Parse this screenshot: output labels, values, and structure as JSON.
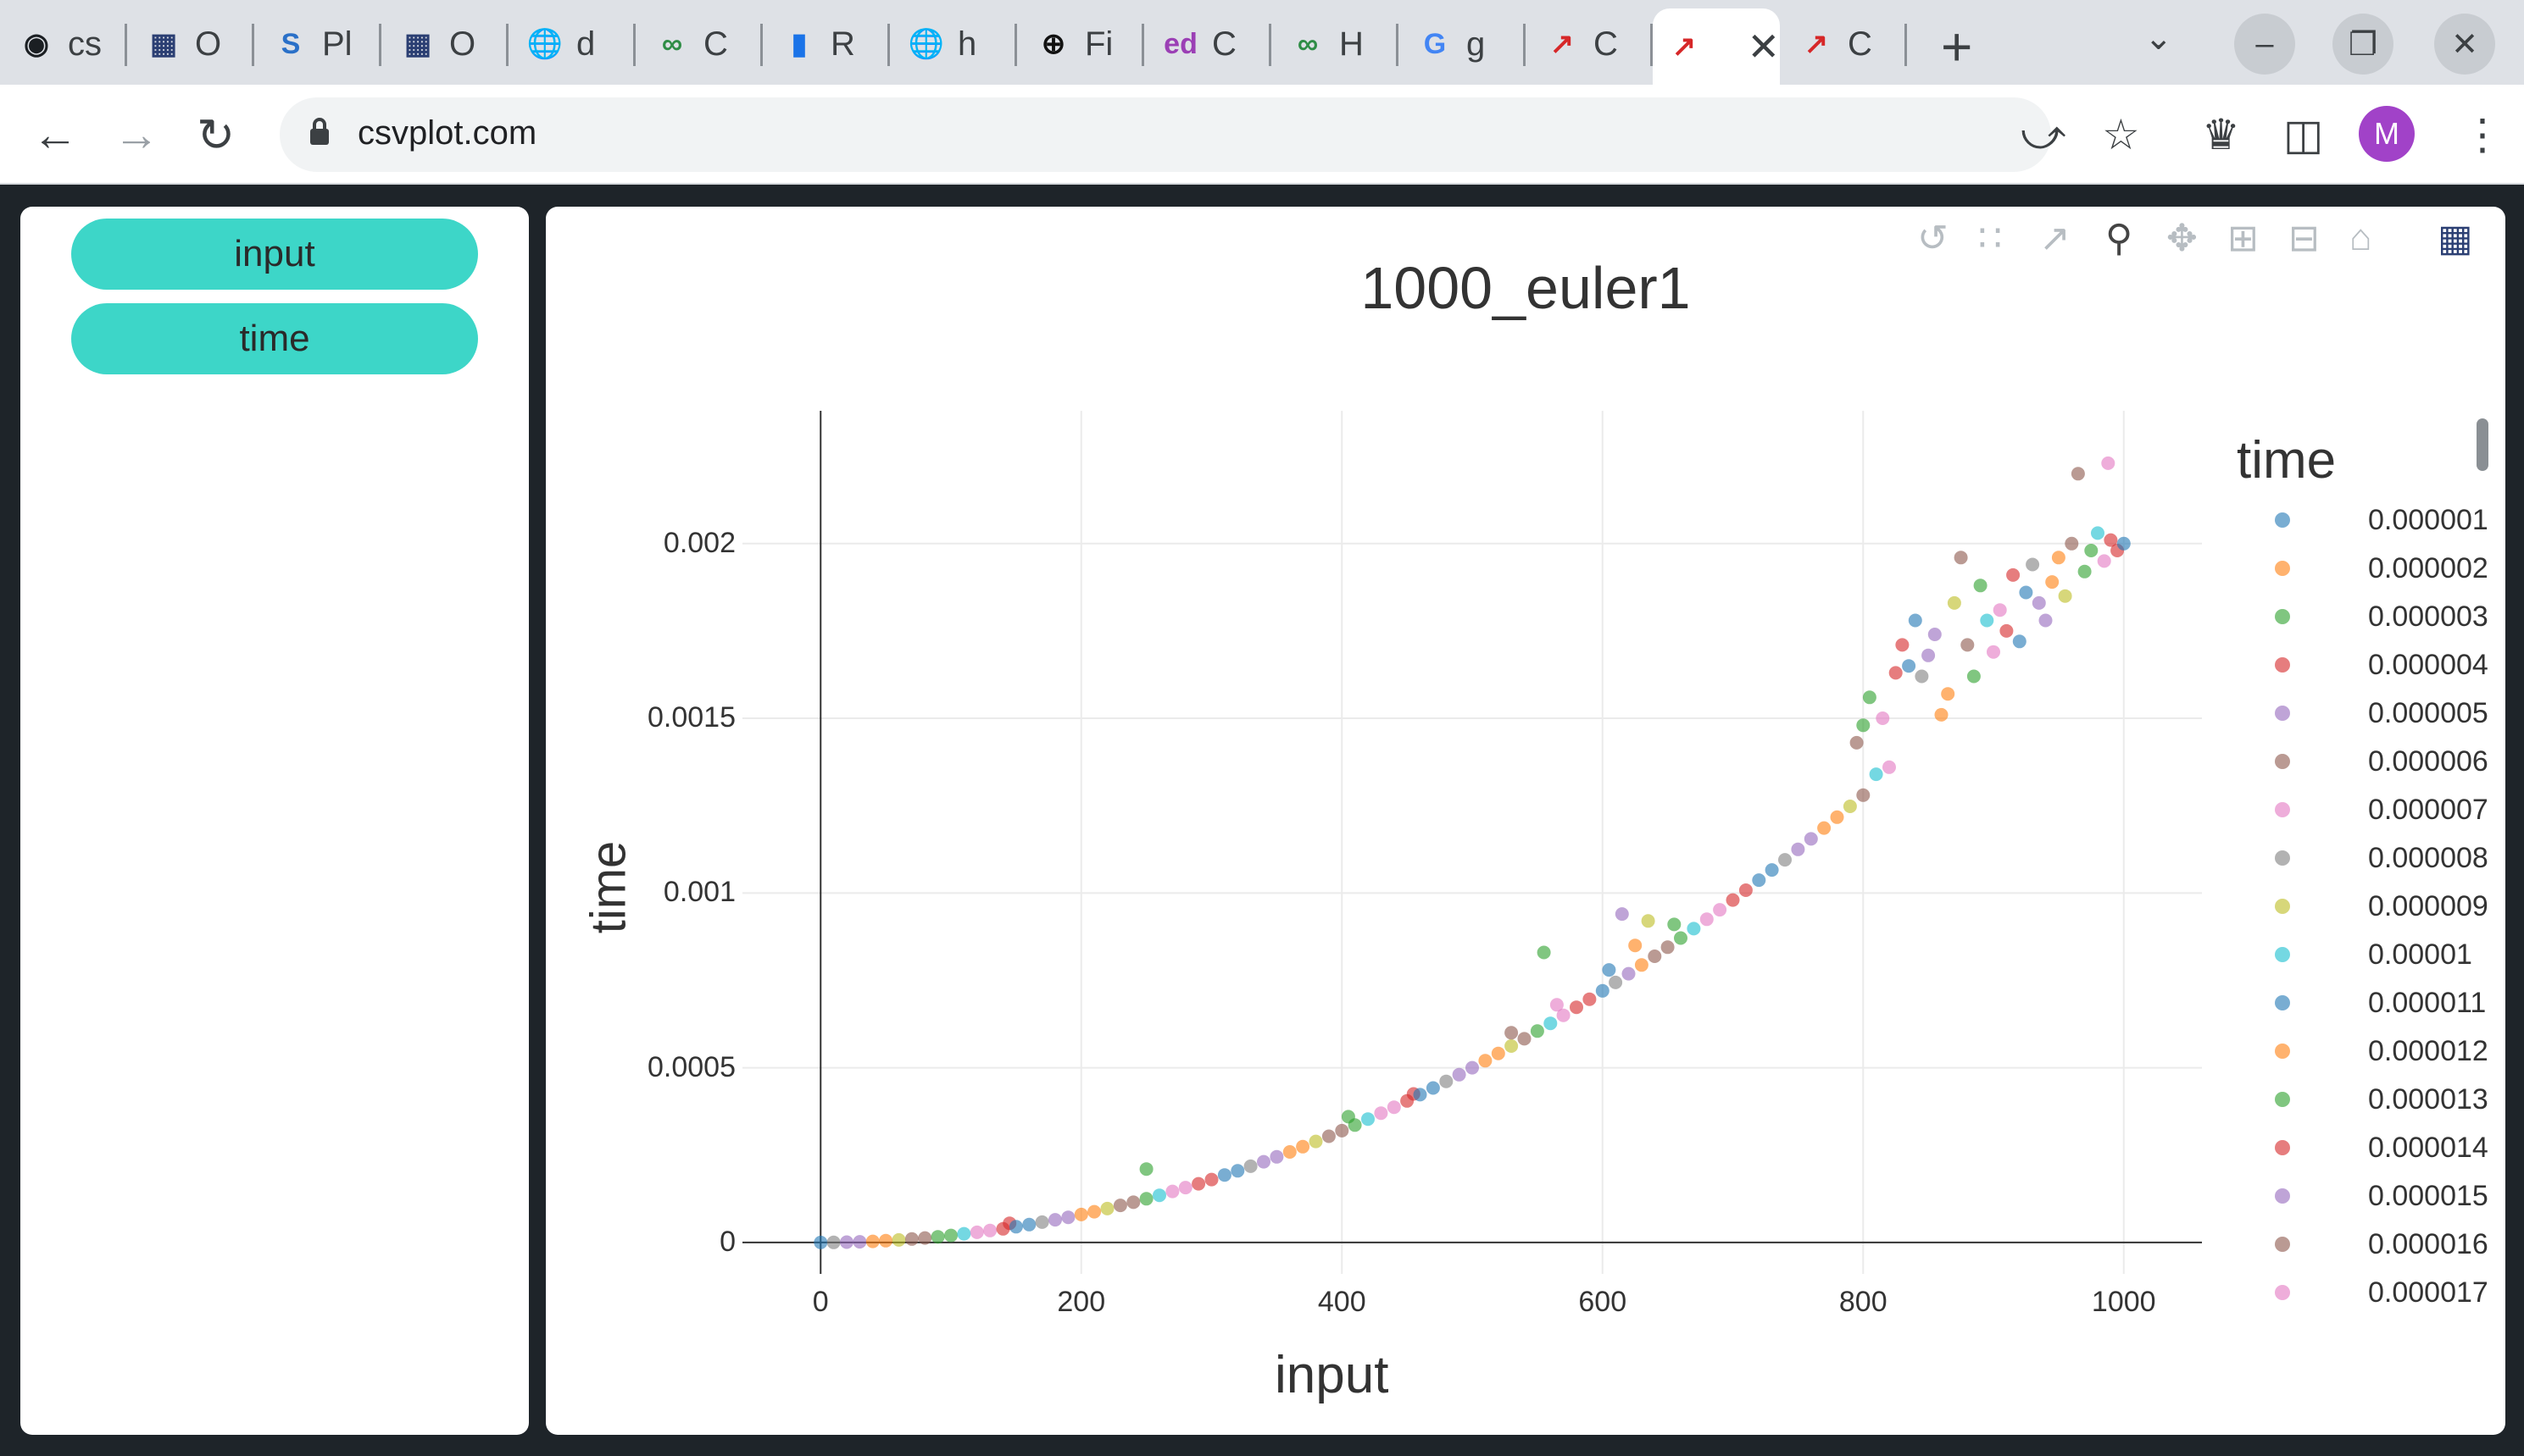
{
  "browser": {
    "tabs": [
      {
        "title": "cs",
        "icon": "github-icon",
        "color": "#1b1f23"
      },
      {
        "title": "O",
        "icon": "plotly-icon",
        "color": "#2b3f73"
      },
      {
        "title": "Pl",
        "icon": "sx-icon",
        "color": "#2a70c8"
      },
      {
        "title": "O",
        "icon": "plotly-icon",
        "color": "#2b3f73"
      },
      {
        "title": "d",
        "icon": "globe-icon",
        "color": "#5f6368"
      },
      {
        "title": "C",
        "icon": "gfg-icon",
        "color": "#2f8d46"
      },
      {
        "title": "R",
        "icon": "bar-chart-icon",
        "color": "#1a73e8"
      },
      {
        "title": "h",
        "icon": "globe-icon",
        "color": "#5f6368"
      },
      {
        "title": "Fi",
        "icon": "cplus-icon",
        "color": "#111"
      },
      {
        "title": "C",
        "icon": "ed-icon",
        "color": "#9b3fb5"
      },
      {
        "title": "H",
        "icon": "gfg-icon",
        "color": "#2f8d46"
      },
      {
        "title": "g",
        "icon": "google-icon",
        "color": "#4285f4"
      },
      {
        "title": "C",
        "icon": "csvplot-icon",
        "color": "#d62728"
      },
      {
        "title": "",
        "icon": "csvplot-icon",
        "color": "#d62728",
        "active": true
      },
      {
        "title": "C",
        "icon": "csvplot-icon",
        "color": "#d62728"
      }
    ],
    "url": "csvplot.com",
    "avatar_letter": "M"
  },
  "sidebar": {
    "buttons": [
      {
        "label": "input"
      },
      {
        "label": "time"
      }
    ]
  },
  "modebar_icons": [
    "reset-icon",
    "select-points-icon",
    "line-icon",
    "zoom-icon",
    "pan-icon",
    "zoom-in-icon",
    "zoom-out-icon",
    "home-icon",
    "plotly-logo-icon"
  ],
  "chart_data": {
    "type": "scatter",
    "title": "1000_euler1",
    "xlabel": "input",
    "ylabel": "time",
    "xlim": [
      -60,
      1060
    ],
    "ylim": [
      -9e-05,
      0.00238
    ],
    "x_ticks": [
      0,
      200,
      400,
      600,
      800,
      1000
    ],
    "x_tick_labels": [
      "0",
      "200",
      "400",
      "600",
      "800",
      "1000"
    ],
    "y_ticks": [
      0,
      0.0005,
      0.001,
      0.0015,
      0.002
    ],
    "y_tick_labels": [
      "0",
      "0.0005",
      "0.001",
      "0.0015",
      "0.002"
    ],
    "grid": true,
    "legend_title": "time",
    "legend_position": "right",
    "series": [
      {
        "name": "0.000001",
        "color": "#1f77b4"
      },
      {
        "name": "0.000002",
        "color": "#ff7f0e"
      },
      {
        "name": "0.000003",
        "color": "#2ca02c"
      },
      {
        "name": "0.000004",
        "color": "#d62728"
      },
      {
        "name": "0.000005",
        "color": "#9467bd"
      },
      {
        "name": "0.000006",
        "color": "#8c564b"
      },
      {
        "name": "0.000007",
        "color": "#e377c2"
      },
      {
        "name": "0.000008",
        "color": "#7f7f7f"
      },
      {
        "name": "0.000009",
        "color": "#bcbd22"
      },
      {
        "name": "0.00001",
        "color": "#17becf"
      },
      {
        "name": "0.000011",
        "color": "#1f77b4"
      },
      {
        "name": "0.000012",
        "color": "#ff7f0e"
      },
      {
        "name": "0.000013",
        "color": "#2ca02c"
      },
      {
        "name": "0.000014",
        "color": "#d62728"
      },
      {
        "name": "0.000015",
        "color": "#9467bd"
      },
      {
        "name": "0.000016",
        "color": "#8c564b"
      },
      {
        "name": "0.000017",
        "color": "#e377c2"
      }
    ],
    "points": [
      [
        0,
        0
      ],
      [
        10,
        2e-07
      ],
      [
        20,
        8e-07
      ],
      [
        30,
        1.8e-06
      ],
      [
        40,
        3.2e-06
      ],
      [
        50,
        5e-06
      ],
      [
        60,
        7.2e-06
      ],
      [
        70,
        9.8e-06
      ],
      [
        80,
        1.28e-05
      ],
      [
        90,
        1.62e-05
      ],
      [
        100,
        2e-05
      ],
      [
        110,
        2.5e-05
      ],
      [
        120,
        2.9e-05
      ],
      [
        130,
        3.4e-05
      ],
      [
        140,
        3.9e-05
      ],
      [
        145,
        5.5e-05
      ],
      [
        150,
        4.5e-05
      ],
      [
        160,
        5.1e-05
      ],
      [
        170,
        5.8e-05
      ],
      [
        180,
        6.5e-05
      ],
      [
        190,
        7.2e-05
      ],
      [
        200,
        8e-05
      ],
      [
        210,
        8.8e-05
      ],
      [
        220,
        9.7e-05
      ],
      [
        230,
        0.000106
      ],
      [
        240,
        0.000115
      ],
      [
        250,
        0.000125
      ],
      [
        250,
        0.00021
      ],
      [
        260,
        0.000135
      ],
      [
        270,
        0.000146
      ],
      [
        280,
        0.000157
      ],
      [
        290,
        0.000168
      ],
      [
        300,
        0.00018
      ],
      [
        310,
        0.000193
      ],
      [
        320,
        0.000205
      ],
      [
        330,
        0.000218
      ],
      [
        340,
        0.000231
      ],
      [
        350,
        0.000245
      ],
      [
        360,
        0.000259
      ],
      [
        370,
        0.000274
      ],
      [
        380,
        0.000289
      ],
      [
        390,
        0.000304
      ],
      [
        400,
        0.00032
      ],
      [
        405,
        0.00036
      ],
      [
        410,
        0.000336
      ],
      [
        420,
        0.000353
      ],
      [
        430,
        0.00037
      ],
      [
        440,
        0.000387
      ],
      [
        450,
        0.000405
      ],
      [
        455,
        0.000425
      ],
      [
        460,
        0.000423
      ],
      [
        470,
        0.000442
      ],
      [
        480,
        0.000461
      ],
      [
        490,
        0.00048
      ],
      [
        500,
        0.0005
      ],
      [
        510,
        0.00052
      ],
      [
        520,
        0.000541
      ],
      [
        530,
        0.000562
      ],
      [
        530,
        0.0006
      ],
      [
        540,
        0.000583
      ],
      [
        550,
        0.000605
      ],
      [
        555,
        0.00083
      ],
      [
        560,
        0.000627
      ],
      [
        565,
        0.00068
      ],
      [
        570,
        0.00065
      ],
      [
        580,
        0.000673
      ],
      [
        590,
        0.000696
      ],
      [
        600,
        0.00072
      ],
      [
        605,
        0.00078
      ],
      [
        610,
        0.000744
      ],
      [
        615,
        0.00094
      ],
      [
        620,
        0.000769
      ],
      [
        625,
        0.00085
      ],
      [
        630,
        0.000794
      ],
      [
        635,
        0.00092
      ],
      [
        640,
        0.000819
      ],
      [
        650,
        0.000845
      ],
      [
        655,
        0.00091
      ],
      [
        660,
        0.000871
      ],
      [
        670,
        0.000898
      ],
      [
        680,
        0.000925
      ],
      [
        690,
        0.000952
      ],
      [
        700,
        0.00098
      ],
      [
        710,
        0.001008
      ],
      [
        720,
        0.001037
      ],
      [
        730,
        0.001066
      ],
      [
        740,
        0.001095
      ],
      [
        750,
        0.001125
      ],
      [
        760,
        0.001155
      ],
      [
        770,
        0.001186
      ],
      [
        780,
        0.001217
      ],
      [
        790,
        0.001248
      ],
      [
        795,
        0.00143
      ],
      [
        800,
        0.00128
      ],
      [
        800,
        0.00148
      ],
      [
        805,
        0.00156
      ],
      [
        810,
        0.00134
      ],
      [
        815,
        0.0015
      ],
      [
        820,
        0.00136
      ],
      [
        825,
        0.00163
      ],
      [
        830,
        0.00171
      ],
      [
        835,
        0.00165
      ],
      [
        840,
        0.00178
      ],
      [
        845,
        0.00162
      ],
      [
        850,
        0.00168
      ],
      [
        855,
        0.00174
      ],
      [
        860,
        0.00151
      ],
      [
        865,
        0.00157
      ],
      [
        870,
        0.00183
      ],
      [
        875,
        0.00196
      ],
      [
        880,
        0.00171
      ],
      [
        885,
        0.00162
      ],
      [
        890,
        0.00188
      ],
      [
        895,
        0.00178
      ],
      [
        900,
        0.00169
      ],
      [
        905,
        0.00181
      ],
      [
        910,
        0.00175
      ],
      [
        915,
        0.00191
      ],
      [
        920,
        0.00172
      ],
      [
        925,
        0.00186
      ],
      [
        930,
        0.00194
      ],
      [
        935,
        0.00183
      ],
      [
        940,
        0.00178
      ],
      [
        945,
        0.00189
      ],
      [
        950,
        0.00196
      ],
      [
        955,
        0.00185
      ],
      [
        960,
        0.002
      ],
      [
        965,
        0.0022
      ],
      [
        970,
        0.00192
      ],
      [
        975,
        0.00198
      ],
      [
        980,
        0.00203
      ],
      [
        985,
        0.00195
      ],
      [
        988,
        0.00223
      ],
      [
        990,
        0.00201
      ],
      [
        995,
        0.00198
      ],
      [
        1000,
        0.002
      ]
    ]
  }
}
